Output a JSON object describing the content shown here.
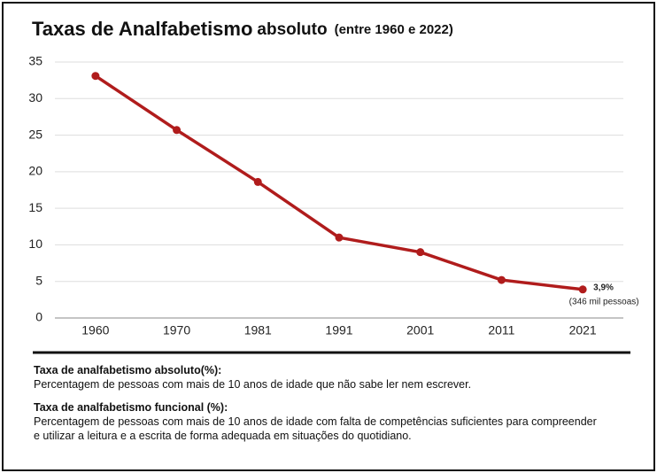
{
  "chart_data": {
    "type": "line",
    "title": "Taxas de Analfabetismo",
    "title_suffix": "absoluto",
    "subtitle": "(entre 1960 e 2022)",
    "categories": [
      "1960",
      "1970",
      "1981",
      "1991",
      "2001",
      "2011",
      "2021"
    ],
    "series": [
      {
        "name": "Taxa de analfabetismo absoluto",
        "color": "#b01c1c",
        "values": [
          33.1,
          25.7,
          18.6,
          11.0,
          9.0,
          5.2,
          3.9
        ],
        "value_labels": [
          null,
          null,
          null,
          null,
          null,
          null,
          "3,9%"
        ]
      }
    ],
    "annotation": "(346 mil pessoas)",
    "ylim": [
      0,
      35
    ],
    "yticks": [
      0,
      5,
      10,
      15,
      20,
      25,
      30,
      35
    ],
    "grid": true
  },
  "notes": [
    {
      "heading": "Taxa de analfabetismo absoluto(%):",
      "text": "Percentagem de pessoas com mais de 10 anos de idade que não sabe ler nem escrever."
    },
    {
      "heading": "Taxa de analfabetismo funcional (%):",
      "text": "Percentagem de pessoas com mais de 10 anos de idade com falta de competências suficientes para compreender e utilizar a leitura e a escrita de forma adequada em situações do quotidiano."
    }
  ]
}
